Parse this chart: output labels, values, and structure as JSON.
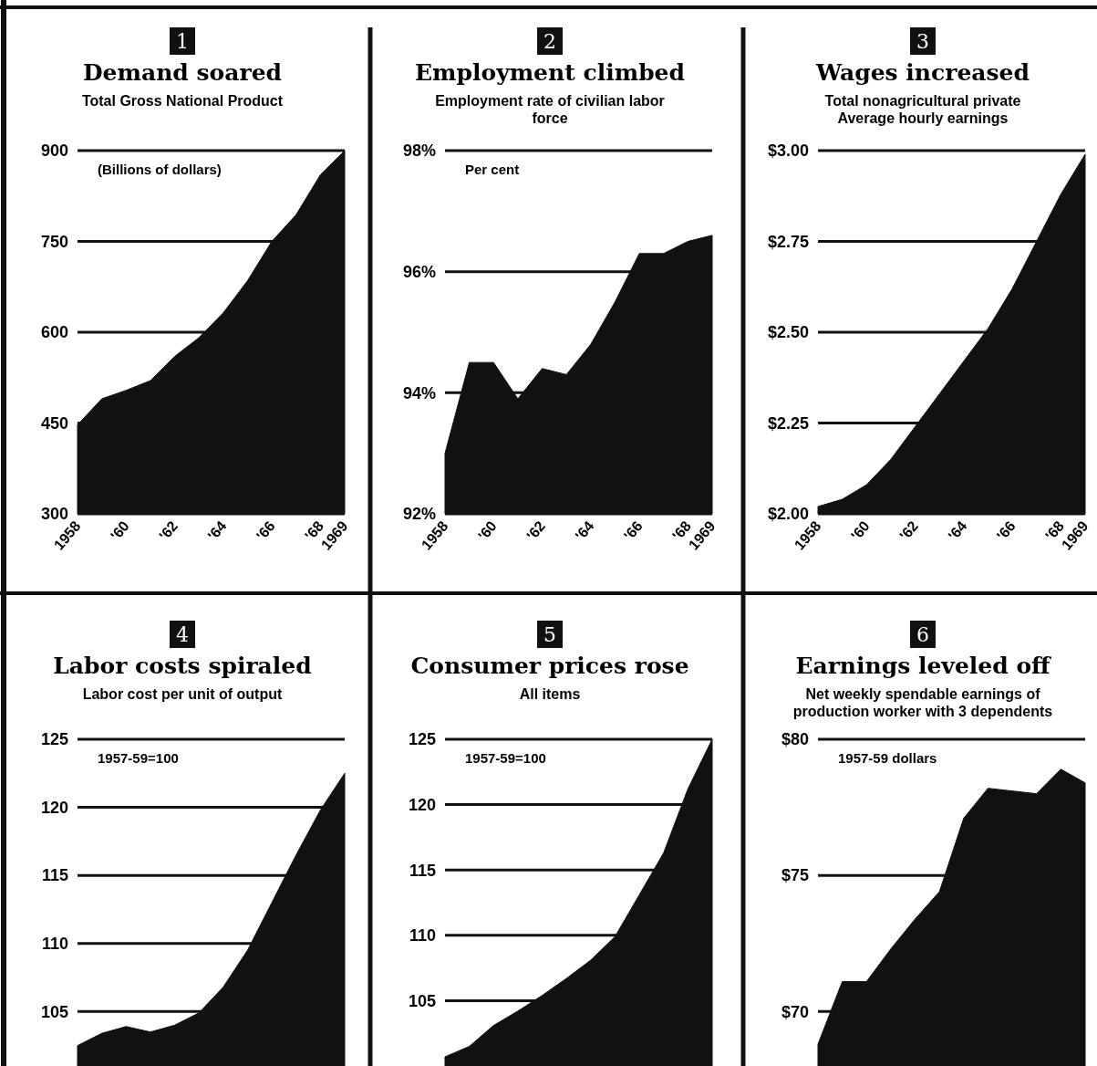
{
  "chart_data": [
    {
      "type": "area",
      "title": "Demand soared",
      "subtitle": "Total Gross National Product",
      "ylabel": "(Billions of dollars)",
      "annotations": [
        "1"
      ],
      "x": [
        1958,
        1959,
        1960,
        1961,
        1962,
        1963,
        1964,
        1965,
        1966,
        1967,
        1968,
        1969
      ],
      "series": [
        {
          "color": "#111111",
          "values": [
            447,
            490,
            504,
            520,
            560,
            591,
            632,
            685,
            750,
            794,
            860,
            900
          ]
        }
      ],
      "xlim": [
        1958,
        1969
      ],
      "xticks": [
        {
          "value": 1958,
          "label": "1958"
        },
        {
          "value": 1960,
          "label": "'60"
        },
        {
          "value": 1962,
          "label": "'62"
        },
        {
          "value": 1964,
          "label": "'64"
        },
        {
          "value": 1966,
          "label": "'66"
        },
        {
          "value": 1968,
          "label": "'68"
        },
        {
          "value": 1969,
          "label": "1969"
        }
      ],
      "ylim": [
        300,
        900
      ],
      "yticks": [
        300,
        450,
        600,
        750,
        900
      ],
      "grid": "y"
    },
    {
      "type": "area",
      "title": "Employment climbed",
      "subtitle": "Employment rate of civilian labor force",
      "ylabel": "Per cent",
      "annotations": [
        "2"
      ],
      "x": [
        1958,
        1959,
        1960,
        1961,
        1962,
        1963,
        1964,
        1965,
        1966,
        1967,
        1968,
        1969
      ],
      "series": [
        {
          "color": "#111111",
          "values": [
            93.0,
            94.5,
            94.5,
            93.9,
            94.4,
            94.3,
            94.8,
            95.5,
            96.3,
            96.3,
            96.5,
            96.6
          ]
        }
      ],
      "xlim": [
        1958,
        1969
      ],
      "xticks": [
        {
          "value": 1958,
          "label": "1958"
        },
        {
          "value": 1960,
          "label": "'60"
        },
        {
          "value": 1962,
          "label": "'62"
        },
        {
          "value": 1964,
          "label": "'64"
        },
        {
          "value": 1966,
          "label": "'66"
        },
        {
          "value": 1968,
          "label": "'68"
        },
        {
          "value": 1969,
          "label": "1969"
        }
      ],
      "ylim": [
        92,
        98
      ],
      "yticks": [
        {
          "value": 92,
          "label": "92%"
        },
        {
          "value": 94,
          "label": "94%"
        },
        {
          "value": 96,
          "label": "96%"
        },
        {
          "value": 98,
          "label": "98%"
        }
      ],
      "grid": "y"
    },
    {
      "type": "area",
      "title": "Wages increased",
      "subtitle": "Total nonagricultural private Average hourly earnings",
      "annotations": [
        "3"
      ],
      "x": [
        1958,
        1959,
        1960,
        1961,
        1962,
        1963,
        1964,
        1965,
        1966,
        1967,
        1968,
        1969
      ],
      "series": [
        {
          "color": "#111111",
          "values": [
            2.02,
            2.04,
            2.08,
            2.15,
            2.24,
            2.33,
            2.42,
            2.51,
            2.62,
            2.75,
            2.88,
            2.99
          ]
        }
      ],
      "xlim": [
        1958,
        1969
      ],
      "xticks": [
        {
          "value": 1958,
          "label": "1958"
        },
        {
          "value": 1960,
          "label": "'60"
        },
        {
          "value": 1962,
          "label": "'62"
        },
        {
          "value": 1964,
          "label": "'64"
        },
        {
          "value": 1966,
          "label": "'66"
        },
        {
          "value": 1968,
          "label": "'68"
        },
        {
          "value": 1969,
          "label": "1969"
        }
      ],
      "ylim": [
        2.0,
        3.0
      ],
      "yticks": [
        {
          "value": 2.0,
          "label": "$2.00"
        },
        {
          "value": 2.25,
          "label": "$2.25"
        },
        {
          "value": 2.5,
          "label": "$2.50"
        },
        {
          "value": 2.75,
          "label": "$2.75"
        },
        {
          "value": 3.0,
          "label": "$3.00"
        }
      ],
      "grid": "y"
    },
    {
      "type": "area",
      "title": "Labor costs spiraled",
      "subtitle": "Labor cost per unit of output",
      "ylabel": "1957-59=100",
      "annotations": [
        "4"
      ],
      "categories": [
        null,
        null,
        null,
        null,
        null,
        null,
        null,
        null,
        null,
        null,
        null,
        null
      ],
      "series": [
        {
          "color": "#111111",
          "values": [
            102.5,
            103.4,
            103.9,
            103.5,
            104.0,
            104.9,
            106.8,
            109.5,
            113.0,
            116.5,
            119.8,
            122.5
          ]
        }
      ],
      "ylim": [
        101,
        125
      ],
      "yticks": [
        105,
        110,
        115,
        120,
        125
      ],
      "grid": "y",
      "tick_labels": "y"
    },
    {
      "type": "area",
      "title": "Consumer prices rose",
      "subtitle": "All items",
      "ylabel": "1957-59=100",
      "annotations": [
        "5"
      ],
      "categories": [
        null,
        null,
        null,
        null,
        null,
        null,
        null,
        null,
        null,
        null,
        null,
        null
      ],
      "series": [
        {
          "color": "#111111",
          "values": [
            100.7,
            101.5,
            103.1,
            104.2,
            105.4,
            106.7,
            108.1,
            109.9,
            113.1,
            116.3,
            121.2,
            125.0
          ]
        }
      ],
      "ylim": [
        100,
        125
      ],
      "yticks": [
        105,
        110,
        115,
        120,
        125
      ],
      "grid": "y",
      "tick_labels": "y"
    },
    {
      "type": "area",
      "title": "Earnings leveled off",
      "subtitle": "Net weekly spendable earnings of production worker with 3 dependents",
      "ylabel": "1957-59 dollars",
      "annotations": [
        "6"
      ],
      "categories": [
        null,
        null,
        null,
        null,
        null,
        null,
        null,
        null,
        null,
        null,
        null,
        null
      ],
      "series": [
        {
          "color": "#111111",
          "values": [
            68.8,
            71.1,
            71.1,
            72.3,
            73.4,
            74.4,
            77.1,
            78.2,
            78.1,
            78.0,
            78.9,
            78.4
          ]
        }
      ],
      "ylim": [
        68,
        80
      ],
      "yticks": [
        {
          "value": 70,
          "label": "$70"
        },
        {
          "value": 75,
          "label": "$75"
        },
        {
          "value": 80,
          "label": "$80"
        }
      ],
      "grid": "y",
      "tick_labels": "y"
    }
  ]
}
